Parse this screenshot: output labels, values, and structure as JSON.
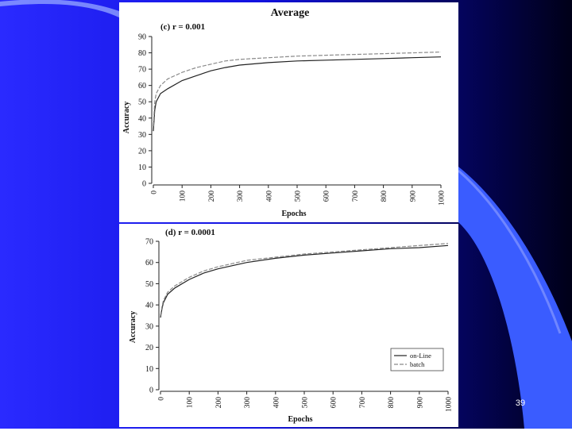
{
  "slide": {
    "page_number": "39"
  },
  "colors": {
    "background_blue": "#1a1aff",
    "panel": "#ffffff",
    "online_line": "#222222",
    "batch_line": "#8a8a8a"
  },
  "chart_data": [
    {
      "type": "line",
      "title": "Average",
      "subtitle": "(c) r = 0.001",
      "xlabel": "Epochs",
      "ylabel": "Accuracy",
      "xlim": [
        0,
        1000
      ],
      "ylim": [
        0,
        90
      ],
      "xticks": [
        "0",
        "100",
        "200",
        "300",
        "400",
        "500",
        "600",
        "700",
        "800",
        "900",
        "1000"
      ],
      "yticks": [
        "0",
        "10",
        "20",
        "30",
        "40",
        "50",
        "60",
        "70",
        "80",
        "90"
      ],
      "grid": false,
      "series": [
        {
          "name": "on-Line",
          "x": [
            0,
            5,
            10,
            25,
            50,
            100,
            150,
            200,
            250,
            300,
            400,
            500,
            600,
            700,
            800,
            900,
            1000
          ],
          "y": [
            32,
            45,
            50,
            55,
            58,
            63,
            66,
            69,
            71,
            72.5,
            74,
            75,
            75.5,
            76,
            76.5,
            77,
            77.5
          ]
        },
        {
          "name": "batch",
          "x": [
            0,
            5,
            10,
            25,
            50,
            100,
            150,
            200,
            250,
            300,
            400,
            500,
            600,
            700,
            800,
            900,
            1000
          ],
          "y": [
            35,
            50,
            55,
            60,
            64,
            68,
            71,
            73,
            75,
            76,
            77,
            78,
            78.5,
            79,
            79.5,
            80,
            80.5
          ]
        }
      ]
    },
    {
      "type": "line",
      "subtitle": "(d) r = 0.0001",
      "xlabel": "Epochs",
      "ylabel": "Accuracy",
      "xlim": [
        0,
        1000
      ],
      "ylim": [
        0,
        70
      ],
      "xticks": [
        "0",
        "100",
        "200",
        "300",
        "400",
        "500",
        "600",
        "700",
        "800",
        "900",
        "1000"
      ],
      "yticks": [
        "0",
        "10",
        "20",
        "30",
        "40",
        "50",
        "60",
        "70"
      ],
      "grid": false,
      "legend": {
        "position": "bottom-right",
        "entries": [
          "on-Line",
          "batch"
        ]
      },
      "series": [
        {
          "name": "on-Line",
          "x": [
            0,
            5,
            10,
            25,
            50,
            100,
            150,
            200,
            250,
            300,
            400,
            500,
            600,
            700,
            800,
            900,
            1000
          ],
          "y": [
            34,
            38,
            41,
            45,
            48,
            52,
            55,
            57,
            58.5,
            60,
            62,
            63.5,
            64.5,
            65.5,
            66.5,
            67,
            68
          ]
        },
        {
          "name": "batch",
          "x": [
            0,
            5,
            10,
            25,
            50,
            100,
            150,
            200,
            250,
            300,
            400,
            500,
            600,
            700,
            800,
            900,
            1000
          ],
          "y": [
            35,
            39,
            42,
            46,
            49,
            53,
            56,
            58,
            59.5,
            61,
            62.5,
            64,
            65,
            66,
            67,
            68,
            69
          ]
        }
      ]
    }
  ]
}
